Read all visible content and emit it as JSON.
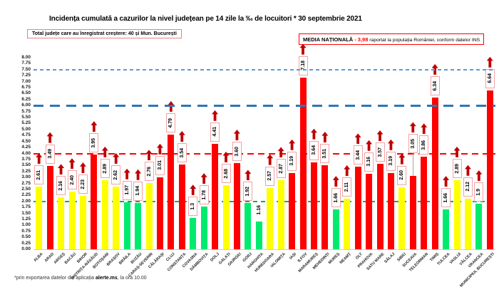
{
  "title": "Incidența cumulată a cazurilor la nivel județean pe 14 zile la ‰ de locuitori * 30 septembrie 2021",
  "total_box": {
    "text": "Total județe care au înregistrat creștere:  40 și Mun. București"
  },
  "media_box": {
    "title": "MEDIA NAȚIONALĂ",
    "value": " - 3,98",
    "rest": " raportat la populația României, conform datelor INS"
  },
  "footnote": {
    "prefix": "*prin exportarea datelor din aplicația ",
    "app": "alerte.ms",
    "suffix": ", la ora 10.00"
  },
  "chart_data": {
    "type": "bar",
    "title": "Incidența cumulată a cazurilor la nivel județean pe 14 zile la ‰ de locuitori * 30 septembrie 2021",
    "xlabel": "",
    "ylabel": "",
    "ylim": [
      0,
      8
    ],
    "ytick_step": 0.25,
    "grid": false,
    "legend_position": "none",
    "yticks": [
      "8.00",
      "7.75",
      "7.50",
      "7.25",
      "7.00",
      "6.75",
      "6.50",
      "6.25",
      "6.00",
      "5.75",
      "5.50",
      "5.25",
      "5.00",
      "4.75",
      "4.50",
      "4.25",
      "4.00",
      "3.75",
      "3.50",
      "3.25",
      "3.00",
      "2.75",
      "2.50",
      "2.25",
      "2.00",
      "1.75",
      "1.50",
      "1.25",
      "1.00",
      "0.75",
      "0.50",
      "0.25",
      "0.00"
    ],
    "categories": [
      "ALBA",
      "ARAD",
      "ARGEȘ",
      "BACĂU",
      "BIHOR",
      "BISTRIȚA-NĂSĂUD",
      "BOTOȘANI",
      "BRAȘOV",
      "BRĂILA",
      "BUZĂU",
      "CARAȘ-SEVERIN",
      "CĂLĂRAȘI",
      "CLUJ",
      "CONSTANȚA",
      "COVASNA",
      "DÂMBOVIȚA",
      "DOLJ",
      "GALAȚI",
      "GIURGIU",
      "GORJ",
      "HARGHITA",
      "HUNEDOARA",
      "IALOMIȚA",
      "IAȘI",
      "ILFOV",
      "MARAMUREȘ",
      "MEHEDINȚI",
      "MUREȘ",
      "NEAMȚ",
      "OLT",
      "PRAHOVA",
      "SATU MARE",
      "SĂLAJ",
      "SIBIU",
      "SUCEAVA",
      "TELEORMAN",
      "TIMIȘ",
      "TULCEA",
      "VASLUI",
      "VÂLCEA",
      "VRANCEA",
      "MUNICIPIUL BUCUREȘTI"
    ],
    "values": [
      2.61,
      3.49,
      2.16,
      2.4,
      2.23,
      3.95,
      2.89,
      2.62,
      1.97,
      1.94,
      2.76,
      3.01,
      4.79,
      3.54,
      1.3,
      1.78,
      4.41,
      2.68,
      3.6,
      1.92,
      1.16,
      2.57,
      2.87,
      3.19,
      7.18,
      3.64,
      3.51,
      1.66,
      2.11,
      3.44,
      3.16,
      3.57,
      3.19,
      2.6,
      3.05,
      3.86,
      6.34,
      1.66,
      2.89,
      2.12,
      1.9,
      6.64
    ],
    "labels": [
      "2.61",
      "3.49",
      "2.16",
      "2.40",
      "2.23",
      "3.95",
      "2.89",
      "2.62",
      "1.97",
      "1.94",
      "2.76",
      "3.01",
      "4.79",
      "3.54",
      "1.3",
      "1.78",
      "4.41",
      "2.68",
      "3.60",
      "1.92",
      "1.16",
      "2.57",
      "2.87",
      "3.19",
      "7.18",
      "3.64",
      "3.51",
      "1.66",
      "2.11",
      "3.44",
      "3.16",
      "3.57",
      "3.19",
      "2.60",
      "3.05",
      "3.86",
      "6.34",
      "1.66",
      "2.89",
      "2.12",
      "1.9",
      "6.64"
    ],
    "colors": [
      "yellow",
      "red",
      "yellow",
      "yellow",
      "yellow",
      "red",
      "yellow",
      "yellow",
      "green",
      "green",
      "yellow",
      "red",
      "red",
      "red",
      "green",
      "green",
      "red",
      "yellow",
      "red",
      "green",
      "green",
      "yellow",
      "yellow",
      "red",
      "red",
      "red",
      "red",
      "green",
      "yellow",
      "red",
      "red",
      "red",
      "red",
      "yellow",
      "red",
      "red",
      "red",
      "green",
      "yellow",
      "yellow",
      "green",
      "red"
    ],
    "increase": [
      true,
      true,
      true,
      true,
      true,
      true,
      true,
      true,
      true,
      true,
      true,
      true,
      true,
      true,
      true,
      true,
      true,
      true,
      true,
      true,
      false,
      true,
      true,
      true,
      true,
      true,
      true,
      true,
      true,
      true,
      true,
      true,
      true,
      true,
      true,
      true,
      true,
      true,
      true,
      true,
      true,
      true
    ],
    "raised_label_indices": [
      34
    ],
    "palette": {
      "green": "#00EB6E",
      "yellow": "#FFFF00",
      "red": "#FF0000"
    },
    "arrow_color": "#C00000",
    "label_box_border": "#F1A3A3",
    "reference_lines": [
      {
        "value": 2.0,
        "color": "#00B050",
        "thickness": 2,
        "dash": 6,
        "gap": 5,
        "front": false
      },
      {
        "value": 4.0,
        "color": "#FF0000",
        "thickness": 2,
        "dash": 9,
        "gap": 6,
        "front": false
      },
      {
        "value": 6.0,
        "color": "#2E75B6",
        "thickness": 3,
        "dash": 14,
        "gap": 9,
        "front": true
      },
      {
        "value": 7.5,
        "color": "#5B9BD5",
        "thickness": 2,
        "dash": 5,
        "gap": 4,
        "front": true
      }
    ]
  }
}
